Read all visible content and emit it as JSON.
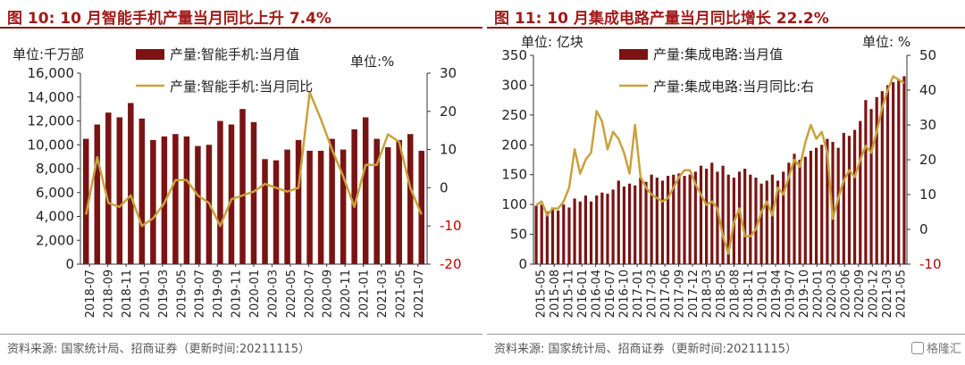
{
  "colors": {
    "title": "#a31a1a",
    "bar": "#7a1414",
    "line": "#c8a23c",
    "right_axis": "#c00000",
    "axis": "#333333"
  },
  "left_panel": {
    "title": "图 10:  10 月智能手机产量当月同比上升 7.4%",
    "source": "资料来源:  国家统计局、招商证券（更新时间:20211115）"
  },
  "right_panel": {
    "title": "图 11:  10 月集成电路产量当月同比增长 22.2%",
    "source": "资料来源:  国家统计局、招商证券（更新时间:20211115）",
    "watermark": "格隆汇"
  },
  "chart_data": [
    {
      "type": "bar",
      "unit_left": "单位:千万部",
      "unit_right": "单位:%",
      "legend": [
        "产量:智能手机:当月值",
        "产量:智能手机:当月同比"
      ],
      "x_ticks": [
        "2018-07",
        "2018-09",
        "2018-11",
        "2019-01",
        "2019-03",
        "2019-05",
        "2019-07",
        "2019-09",
        "2019-11",
        "2020-01",
        "2020-03",
        "2020-05",
        "2020-07",
        "2020-09",
        "2020-11",
        "2021-01",
        "2021-03",
        "2021-05",
        "2021-07"
      ],
      "y_left": {
        "min": 0,
        "max": 16000,
        "ticks": [
          0,
          2000,
          4000,
          6000,
          8000,
          10000,
          12000,
          14000,
          16000
        ],
        "labels": [
          "0",
          "2,000",
          "4,000",
          "6,000",
          "8,000",
          "10,000",
          "12,000",
          "14,000",
          "16,000"
        ]
      },
      "y_right": {
        "min": -20,
        "max": 30,
        "ticks": [
          -20,
          -10,
          0,
          10,
          20,
          30
        ],
        "labels": [
          "-20",
          "-10",
          "0",
          "10",
          "20",
          "30"
        ]
      },
      "series": [
        {
          "name": "产量:智能手机:当月值",
          "type": "bar",
          "values": [
            10500,
            11700,
            12700,
            12300,
            13500,
            12200,
            10400,
            10700,
            10900,
            10700,
            9900,
            10000,
            12000,
            11700,
            13000,
            11900,
            8800,
            8700,
            9600,
            10400,
            9500,
            9500,
            10500,
            9600,
            11300,
            12300,
            10500,
            9800,
            10400,
            10900,
            9500
          ]
        },
        {
          "name": "产量:智能手机:当月同比",
          "type": "line",
          "values": [
            -7,
            8,
            -4,
            -5,
            -2,
            -10,
            -8,
            -4,
            2,
            2,
            -2,
            -4,
            -10,
            -3,
            -2,
            -1,
            1,
            0,
            -1,
            0,
            25,
            18,
            10,
            3,
            -5,
            6,
            6,
            14,
            12,
            0,
            -7
          ]
        }
      ]
    },
    {
      "type": "bar",
      "unit_left": "单位:  亿块",
      "unit_right": "单位:  %",
      "legend": [
        "产量:集成电路:当月值",
        "产量:集成电路:当月同比:右"
      ],
      "x_ticks": [
        "2015-05",
        "2015-08",
        "2015-11",
        "2016-01",
        "2016-04",
        "2016-07",
        "2016-10",
        "2017-01",
        "2017-03",
        "2017-06",
        "2017-09",
        "2017-12",
        "2018-03",
        "2018-05",
        "2018-08",
        "2018-11",
        "2019-01",
        "2019-04",
        "2019-07",
        "2019-10",
        "2020-01",
        "2020-03",
        "2020-06",
        "2020-09",
        "2020-12",
        "2021-03",
        "2021-05"
      ],
      "y_left": {
        "min": 0,
        "max": 350,
        "ticks": [
          0,
          50,
          100,
          150,
          200,
          250,
          300,
          350
        ],
        "labels": [
          "0",
          "50",
          "100",
          "150",
          "200",
          "250",
          "300",
          "350"
        ]
      },
      "y_right": {
        "min": -10,
        "max": 50,
        "ticks": [
          -10,
          0,
          10,
          20,
          30,
          40,
          50
        ],
        "labels": [
          "-10",
          "0",
          "10",
          "20",
          "30",
          "40",
          "50"
        ]
      },
      "series": [
        {
          "name": "产量:集成电路:当月值",
          "type": "bar",
          "values": [
            98,
            100,
            88,
            95,
            90,
            100,
            95,
            110,
            105,
            115,
            105,
            115,
            120,
            118,
            125,
            140,
            130,
            135,
            132,
            145,
            138,
            150,
            145,
            140,
            148,
            150,
            152,
            148,
            150,
            155,
            165,
            160,
            170,
            155,
            165,
            150,
            145,
            155,
            160,
            150,
            145,
            135,
            140,
            150,
            140,
            155,
            170,
            185,
            175,
            180,
            190,
            195,
            200,
            210,
            205,
            195,
            220,
            215,
            225,
            240,
            275,
            260,
            280,
            290,
            300,
            305,
            310,
            315
          ]
        },
        {
          "name": "产量:集成电路:当月同比:右",
          "type": "line",
          "values": [
            7,
            8,
            4,
            6,
            6,
            8,
            12,
            23,
            16,
            20,
            22,
            34,
            31,
            23,
            28,
            26,
            22,
            16,
            30,
            15,
            12,
            10,
            9,
            8,
            9,
            12,
            15,
            17,
            17,
            13,
            10,
            7,
            8,
            6,
            -2,
            -7,
            2,
            6,
            -2,
            -2,
            0,
            5,
            8,
            4,
            12,
            10,
            15,
            20,
            18,
            25,
            30,
            26,
            28,
            22,
            3,
            9,
            14,
            17,
            15,
            20,
            24,
            22,
            28,
            35,
            40,
            44,
            43,
            42
          ]
        }
      ]
    }
  ]
}
